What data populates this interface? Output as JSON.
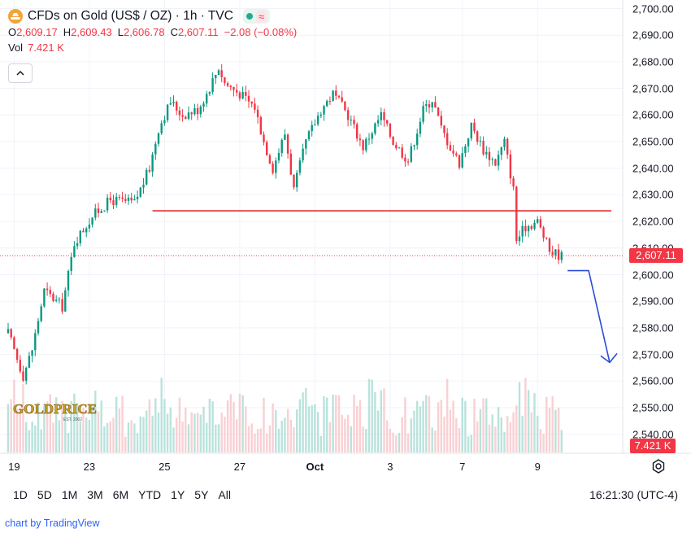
{
  "header": {
    "title": "CFDs on Gold (US$ / OZ) · 1h · TVC",
    "wave_glyph": "≈",
    "ohlc": [
      {
        "k": "O",
        "v": "2,609.17"
      },
      {
        "k": "H",
        "v": "2,609.43"
      },
      {
        "k": "L",
        "v": "2,606.78"
      },
      {
        "k": "C",
        "v": "2,607.11"
      }
    ],
    "change": "−2.08 (−0.08%)",
    "vol_label": "Vol",
    "vol_value": "7.421 K"
  },
  "watermark": {
    "brand": "GOLDPRICE",
    "est": "EST. 2002"
  },
  "chart_data": {
    "type": "candlestick",
    "instrument": "CFDs on Gold (US$ / OZ)",
    "interval": "1h",
    "y_range": [
      2535,
      2700
    ],
    "y_ticks": [
      "2,700.00",
      "2,690.00",
      "2,680.00",
      "2,670.00",
      "2,660.00",
      "2,650.00",
      "2,640.00",
      "2,630.00",
      "2,620.00",
      "2,610.00",
      "2,600.00",
      "2,590.00",
      "2,580.00",
      "2,570.00",
      "2,560.00",
      "2,550.00",
      "2,540.00"
    ],
    "y_tick_values": [
      2700,
      2690,
      2680,
      2670,
      2660,
      2650,
      2640,
      2630,
      2620,
      2610,
      2600,
      2590,
      2580,
      2570,
      2560,
      2550,
      2540
    ],
    "x_labels": [
      {
        "label": "19",
        "bar": 2,
        "bold": false
      },
      {
        "label": "23",
        "bar": 27,
        "bold": false
      },
      {
        "label": "25",
        "bar": 52,
        "bold": false
      },
      {
        "label": "27",
        "bar": 77,
        "bold": false
      },
      {
        "label": "Oct",
        "bar": 102,
        "bold": true
      },
      {
        "label": "3",
        "bar": 127,
        "bold": false
      },
      {
        "label": "7",
        "bar": 151,
        "bold": false
      },
      {
        "label": "9",
        "bar": 176,
        "bold": false
      }
    ],
    "bar_count": 185,
    "last_price": "2,607.11",
    "last_price_value": 2607.11,
    "last_volume": "7.421 K",
    "close_path": [
      [
        0,
        2578
      ],
      [
        5,
        2562
      ],
      [
        8,
        2572
      ],
      [
        12,
        2594
      ],
      [
        18,
        2588
      ],
      [
        22,
        2612
      ],
      [
        28,
        2622
      ],
      [
        34,
        2628
      ],
      [
        42,
        2627
      ],
      [
        47,
        2640
      ],
      [
        50,
        2655
      ],
      [
        54,
        2665
      ],
      [
        58,
        2660
      ],
      [
        63,
        2662
      ],
      [
        66,
        2668
      ],
      [
        70,
        2678
      ],
      [
        72,
        2672
      ],
      [
        77,
        2668
      ],
      [
        82,
        2663
      ],
      [
        85,
        2650
      ],
      [
        88,
        2640
      ],
      [
        92,
        2653
      ],
      [
        95,
        2632
      ],
      [
        99,
        2650
      ],
      [
        104,
        2662
      ],
      [
        108,
        2668
      ],
      [
        113,
        2660
      ],
      [
        118,
        2648
      ],
      [
        124,
        2660
      ],
      [
        128,
        2650
      ],
      [
        133,
        2643
      ],
      [
        138,
        2662
      ],
      [
        141,
        2666
      ],
      [
        144,
        2655
      ],
      [
        147,
        2648
      ],
      [
        150,
        2642
      ],
      [
        154,
        2656
      ],
      [
        158,
        2647
      ],
      [
        162,
        2642
      ],
      [
        165,
        2650
      ],
      [
        168,
        2632
      ],
      [
        169,
        2613
      ],
      [
        172,
        2618
      ],
      [
        176,
        2620
      ],
      [
        180,
        2609
      ],
      [
        184,
        2607
      ]
    ],
    "annotations": [
      {
        "type": "horizontal-line",
        "price": 2624,
        "from_bar": 48,
        "to_bar": 205,
        "color": "#e03030"
      },
      {
        "type": "arrow",
        "points": [
          [
            186,
            2601.5
          ],
          [
            193,
            2601.5
          ],
          [
            200,
            2567
          ]
        ],
        "color": "#2a4bd7"
      }
    ],
    "colors": {
      "up": "#089981",
      "down": "#f23645",
      "volume_up": "#9bd7cd",
      "volume_down": "#f7bcc1"
    }
  },
  "ranges": [
    "1D",
    "5D",
    "1M",
    "3M",
    "6M",
    "YTD",
    "1Y",
    "5Y",
    "All"
  ],
  "clock": "16:21:30 (UTC-4)",
  "footer": {
    "pre": "chart by ",
    "brand": "TradingView"
  },
  "icons": {
    "collapse": "chevron-up-icon",
    "settings": "gear-icon",
    "badge": "gold-bars-icon"
  }
}
